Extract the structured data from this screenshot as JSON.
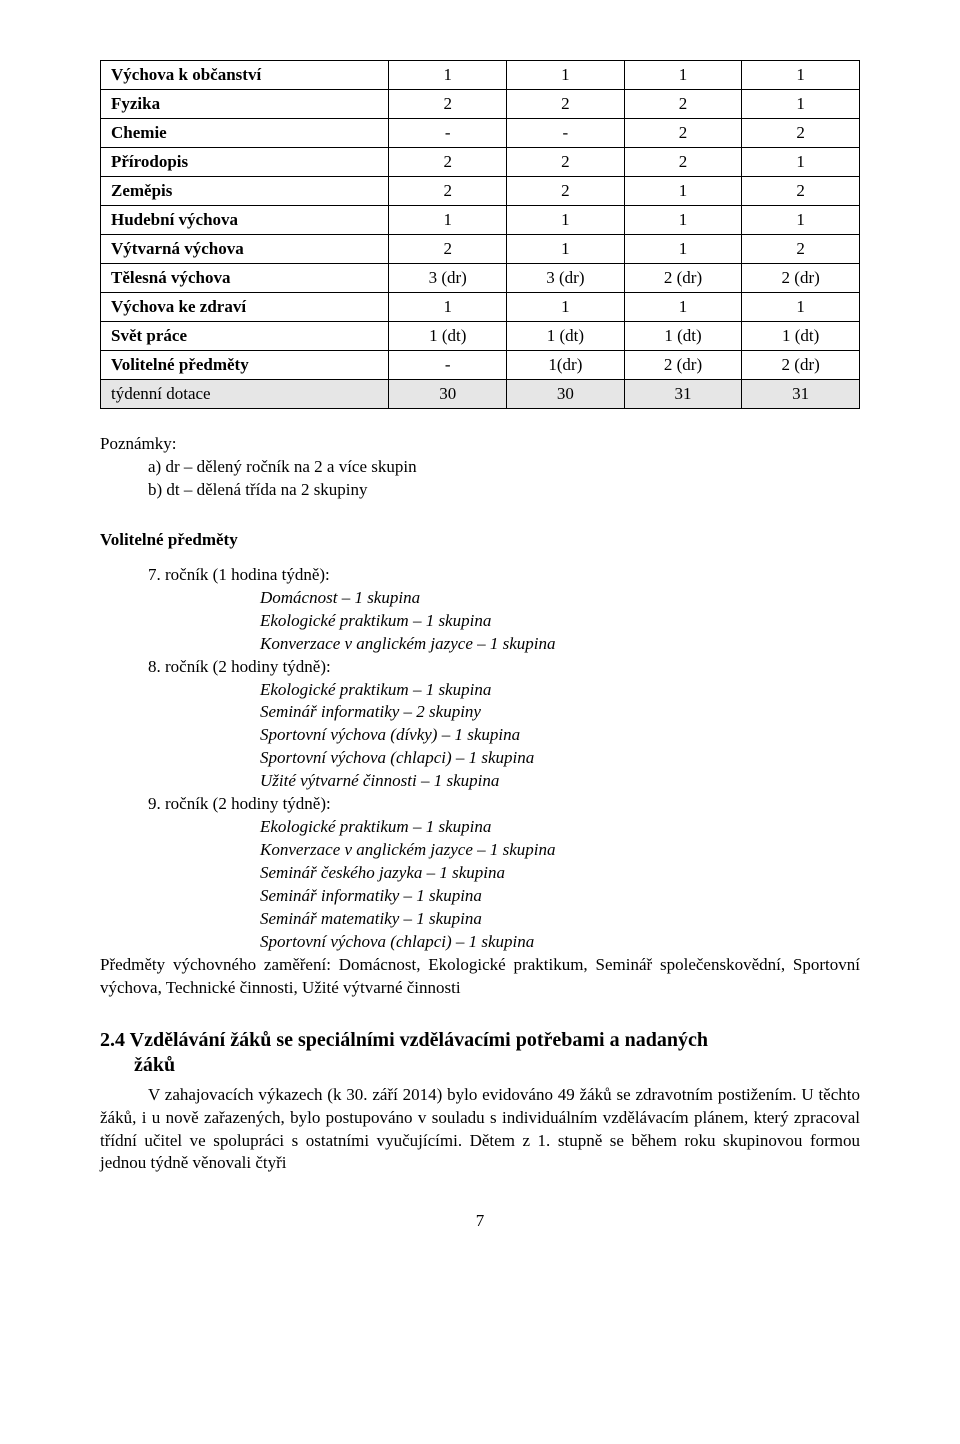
{
  "table": {
    "rows": [
      {
        "label": "Výchova k občanství",
        "v": [
          "1",
          "1",
          "1",
          "1"
        ],
        "shaded": false
      },
      {
        "label": "Fyzika",
        "v": [
          "2",
          "2",
          "2",
          "1"
        ],
        "shaded": false
      },
      {
        "label": "Chemie",
        "v": [
          "-",
          "-",
          "2",
          "2"
        ],
        "shaded": false
      },
      {
        "label": "Přírodopis",
        "v": [
          "2",
          "2",
          "2",
          "1"
        ],
        "shaded": false
      },
      {
        "label": "Zeměpis",
        "v": [
          "2",
          "2",
          "1",
          "2"
        ],
        "shaded": false
      },
      {
        "label": "Hudební výchova",
        "v": [
          "1",
          "1",
          "1",
          "1"
        ],
        "shaded": false
      },
      {
        "label": "Výtvarná výchova",
        "v": [
          "2",
          "1",
          "1",
          "2"
        ],
        "shaded": false
      },
      {
        "label": "Tělesná výchova",
        "v": [
          "3 (dr)",
          "3 (dr)",
          "2 (dr)",
          "2 (dr)"
        ],
        "shaded": false
      },
      {
        "label": "Výchova ke zdraví",
        "v": [
          "1",
          "1",
          "1",
          "1"
        ],
        "shaded": false
      },
      {
        "label": "Svět práce",
        "v": [
          "1 (dt)",
          "1 (dt)",
          "1 (dt)",
          "1 (dt)"
        ],
        "shaded": false
      },
      {
        "label": "Volitelné předměty",
        "v": [
          "-",
          "1(dr)",
          "2 (dr)",
          "2 (dr)"
        ],
        "shaded": false
      },
      {
        "label": "týdenní dotace",
        "v": [
          "30",
          "30",
          "31",
          "31"
        ],
        "shaded": true
      }
    ]
  },
  "notes": {
    "heading": "Poznámky:",
    "a": "a) dr – dělený ročník na 2 a více skupin",
    "b": "b) dt – dělená třída na 2 skupiny"
  },
  "optional": {
    "title": "Volitelné předměty",
    "grade7": "7. ročník (1 hodina týdně):",
    "g7_items": [
      "Domácnost – 1 skupina",
      "Ekologické praktikum – 1 skupina",
      "Konverzace v anglickém jazyce – 1 skupina"
    ],
    "grade8": "8. ročník (2 hodiny týdně):",
    "g8_items": [
      "Ekologické praktikum – 1 skupina",
      "Seminář informatiky – 2 skupiny",
      "Sportovní výchova (dívky) – 1 skupina",
      "Sportovní výchova (chlapci) – 1 skupina",
      "Užité výtvarné činnosti – 1 skupina"
    ],
    "grade9": "9. ročník (2 hodiny týdně):",
    "g9_items": [
      "Ekologické praktikum – 1 skupina",
      "Konverzace v anglickém jazyce – 1 skupina",
      "Seminář českého jazyka – 1 skupina",
      "Seminář informatiky – 1 skupina",
      "Seminář matematiky – 1 skupina",
      "Sportovní výchova (chlapci) – 1 skupina"
    ],
    "predmety": "Předměty výchovného zaměření: Domácnost, Ekologické praktikum, Seminář společenskovědní, Sportovní výchova, Technické činnosti, Užité výtvarné činnosti"
  },
  "section24": {
    "heading_l1": "2.4 Vzdělávání žáků se speciálními vzdělávacími potřebami a nadaných",
    "heading_l2": "žáků",
    "body": "V zahajovacích výkazech (k 30. září 2014) bylo evidováno 49 žáků se zdravotním postižením. U těchto žáků, i u nově zařazených, bylo postupováno v souladu s individuálním vzdělávacím plánem, který zpracoval třídní učitel ve spolupráci s ostatními vyučujícími. Dětem z 1. stupně se během roku skupinovou formou jednou týdně věnovali čtyři"
  },
  "page_number": "7"
}
